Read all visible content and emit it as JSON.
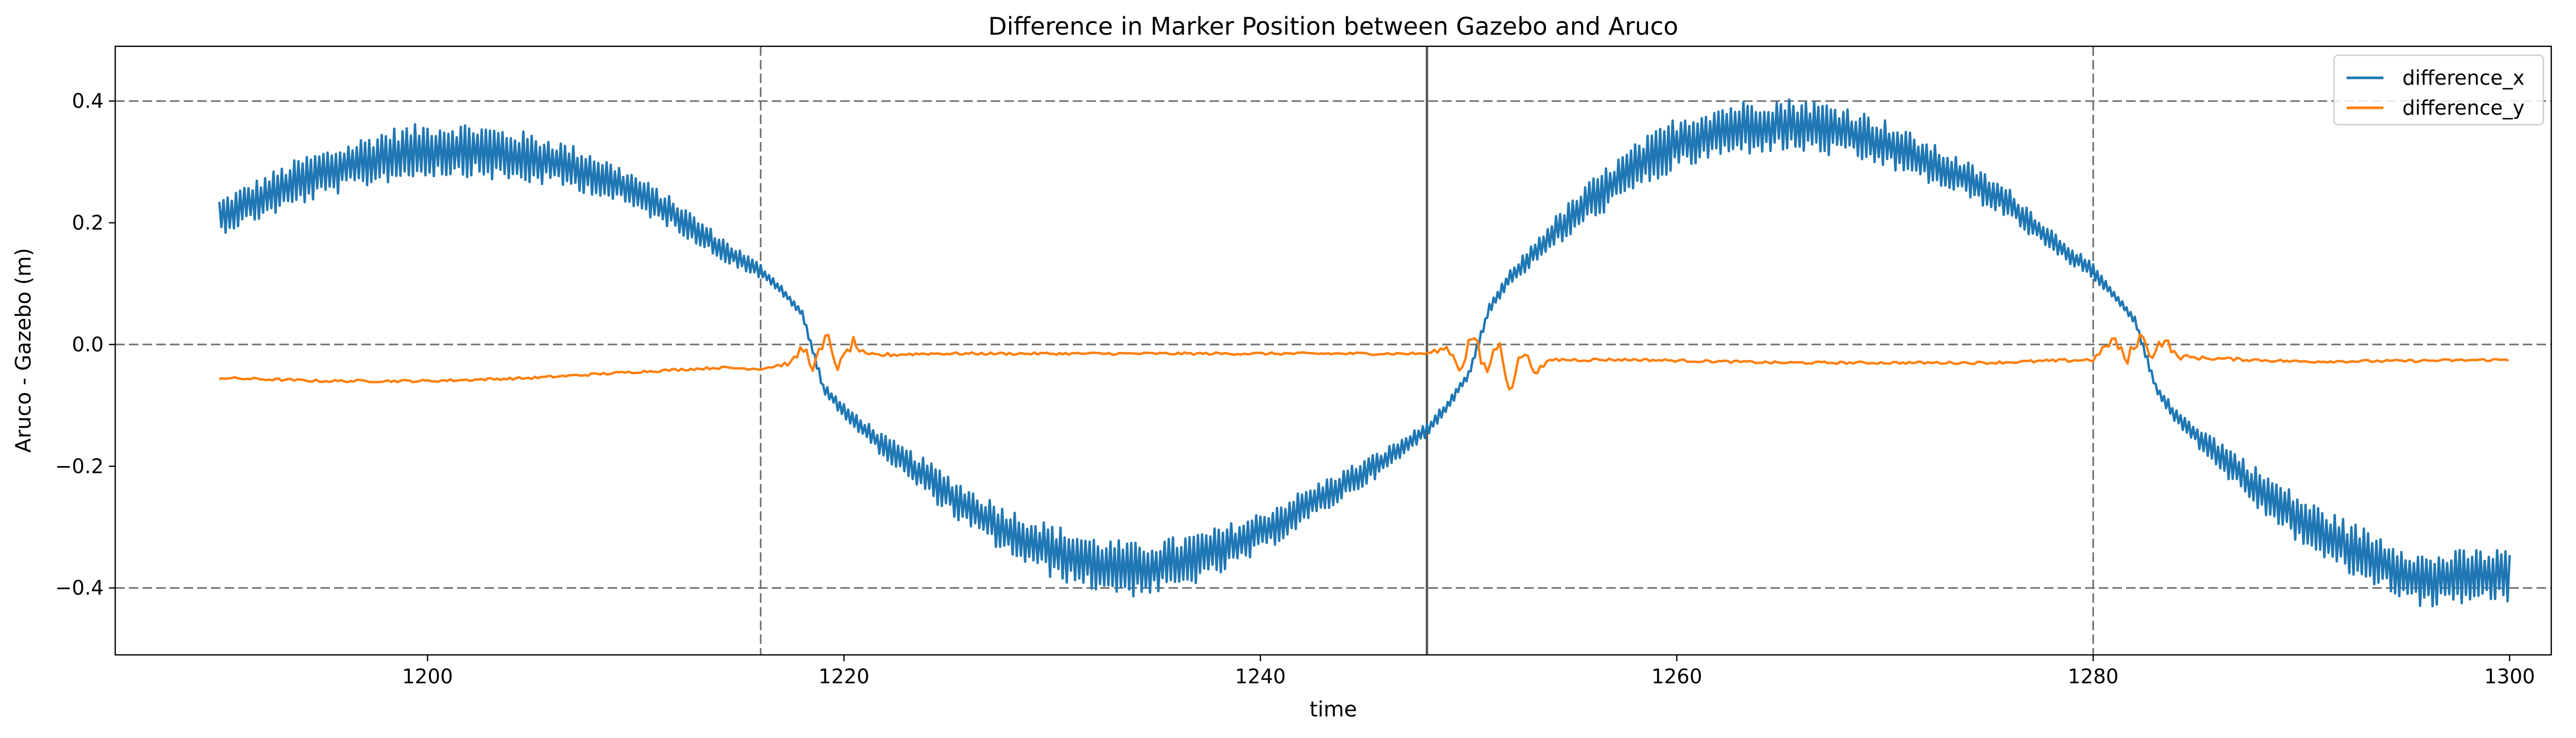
{
  "chart_data": {
    "type": "line",
    "title": "Difference in Marker Position between Gazebo and Aruco",
    "xlabel": "time",
    "ylabel": "Aruco - Gazebo (m)",
    "xlim": [
      1185,
      1302
    ],
    "ylim": [
      -0.51,
      0.49
    ],
    "xticks": [
      1200,
      1220,
      1240,
      1260,
      1280,
      1300
    ],
    "yticks": [
      -0.4,
      -0.2,
      0.0,
      0.2,
      0.4
    ],
    "xtick_labels": [
      "1200",
      "1220",
      "1240",
      "1260",
      "1280",
      "1300"
    ],
    "ytick_labels": [
      "−0.4",
      "−0.2",
      "0.0",
      "0.2",
      "0.4"
    ],
    "reference_lines": {
      "horizontal_dashed": [
        0.4,
        0.0,
        -0.4
      ],
      "vertical_dashed": [
        1216,
        1280
      ],
      "vertical_solid": [
        1248
      ]
    },
    "grid": false,
    "legend_position": "top-right",
    "series": [
      {
        "name": "difference_x",
        "color": "#1f77b4",
        "x": [
          1190,
          1192,
          1194,
          1196,
          1198,
          1200,
          1202,
          1204,
          1206,
          1208,
          1210,
          1212,
          1214,
          1216,
          1217,
          1218,
          1219,
          1220,
          1222,
          1224,
          1226,
          1228,
          1230,
          1232,
          1234,
          1236,
          1238,
          1240,
          1242,
          1244,
          1246,
          1248,
          1249,
          1250,
          1251,
          1252,
          1254,
          1256,
          1258,
          1260,
          1262,
          1264,
          1266,
          1268,
          1270,
          1272,
          1274,
          1276,
          1278,
          1280,
          1281,
          1282,
          1283,
          1284,
          1286,
          1288,
          1290,
          1292,
          1294,
          1296,
          1298,
          1300
        ],
        "y": [
          0.21,
          0.24,
          0.27,
          0.29,
          0.31,
          0.32,
          0.32,
          0.31,
          0.3,
          0.28,
          0.25,
          0.21,
          0.16,
          0.12,
          0.09,
          0.05,
          -0.07,
          -0.11,
          -0.17,
          -0.22,
          -0.27,
          -0.31,
          -0.34,
          -0.36,
          -0.37,
          -0.36,
          -0.34,
          -0.31,
          -0.27,
          -0.23,
          -0.19,
          -0.14,
          -0.1,
          -0.05,
          0.06,
          0.11,
          0.18,
          0.24,
          0.29,
          0.33,
          0.35,
          0.36,
          0.36,
          0.35,
          0.33,
          0.3,
          0.27,
          0.23,
          0.17,
          0.12,
          0.08,
          0.04,
          -0.07,
          -0.12,
          -0.18,
          -0.24,
          -0.29,
          -0.33,
          -0.36,
          -0.39,
          -0.38,
          -0.38
        ],
        "noise_amplitude": [
          0.03,
          0.035,
          0.04,
          0.04,
          0.045,
          0.045,
          0.045,
          0.045,
          0.04,
          0.035,
          0.03,
          0.025,
          0.02,
          0.012,
          0.008,
          0.006,
          0.008,
          0.012,
          0.02,
          0.03,
          0.035,
          0.04,
          0.045,
          0.045,
          0.045,
          0.045,
          0.04,
          0.035,
          0.03,
          0.025,
          0.02,
          0.012,
          0.008,
          0.006,
          0.008,
          0.012,
          0.025,
          0.035,
          0.04,
          0.045,
          0.045,
          0.045,
          0.045,
          0.045,
          0.04,
          0.035,
          0.03,
          0.025,
          0.02,
          0.012,
          0.008,
          0.006,
          0.008,
          0.012,
          0.025,
          0.035,
          0.04,
          0.045,
          0.045,
          0.045,
          0.045,
          0.045
        ]
      },
      {
        "name": "difference_y",
        "color": "#ff7f0e",
        "x": [
          1190,
          1195,
          1200,
          1205,
          1210,
          1214,
          1216,
          1217.5,
          1218,
          1218.6,
          1219.2,
          1219.8,
          1220.4,
          1221,
          1224,
          1230,
          1240,
          1248,
          1249,
          1249.6,
          1250.2,
          1250.8,
          1251.4,
          1252,
          1252.6,
          1253.2,
          1254,
          1258,
          1265,
          1270,
          1275,
          1280,
          1281,
          1281.6,
          1282.2,
          1282.8,
          1283.4,
          1284,
          1285,
          1290,
          1295,
          1300
        ],
        "y": [
          -0.055,
          -0.06,
          -0.06,
          -0.055,
          -0.045,
          -0.038,
          -0.04,
          -0.03,
          -0.005,
          -0.035,
          0.01,
          -0.04,
          0.005,
          -0.018,
          -0.015,
          -0.015,
          -0.015,
          -0.015,
          -0.005,
          -0.04,
          0.02,
          -0.05,
          0.005,
          -0.07,
          -0.01,
          -0.045,
          -0.025,
          -0.025,
          -0.03,
          -0.03,
          -0.03,
          -0.025,
          0.01,
          -0.03,
          0.015,
          -0.015,
          0.01,
          -0.02,
          -0.022,
          -0.028,
          -0.027,
          -0.025
        ],
        "noise_amplitude": [
          0.002,
          0.002,
          0.002,
          0.002,
          0.002,
          0.002,
          0.002,
          0.004,
          0.01,
          0.015,
          0.015,
          0.015,
          0.01,
          0.004,
          0.002,
          0.002,
          0.002,
          0.002,
          0.005,
          0.012,
          0.015,
          0.015,
          0.015,
          0.015,
          0.01,
          0.005,
          0.003,
          0.002,
          0.002,
          0.002,
          0.002,
          0.003,
          0.008,
          0.012,
          0.012,
          0.012,
          0.01,
          0.005,
          0.003,
          0.002,
          0.002,
          0.002
        ]
      }
    ]
  }
}
